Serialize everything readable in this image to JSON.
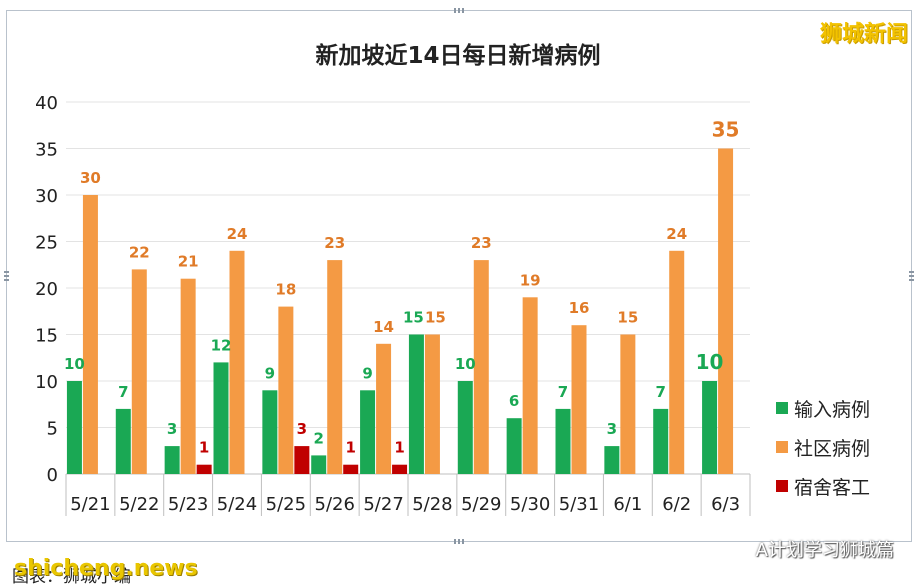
{
  "watermark_top": "狮城新闻",
  "watermark_bottom_left": "shicheng.news",
  "watermark_bottom_right": "A计划学习狮城篇",
  "bottom_caption": "图表：狮城小编",
  "chart_data": {
    "type": "bar",
    "title": "新加坡近14日每日新增病例",
    "categories": [
      "5/21",
      "5/22",
      "5/23",
      "5/24",
      "5/25",
      "5/26",
      "5/27",
      "5/28",
      "5/29",
      "5/30",
      "5/31",
      "6/1",
      "6/2",
      "6/3"
    ],
    "series": [
      {
        "name": "输入病例",
        "color": "#1aa854",
        "values": [
          10,
          7,
          3,
          12,
          9,
          2,
          9,
          15,
          10,
          6,
          7,
          3,
          7,
          10
        ]
      },
      {
        "name": "社区病例",
        "color": "#f49a44",
        "values": [
          30,
          22,
          21,
          24,
          18,
          23,
          14,
          15,
          23,
          19,
          16,
          15,
          24,
          35
        ]
      },
      {
        "name": "宿舍客工",
        "color": "#c00000",
        "values": [
          0,
          0,
          1,
          0,
          3,
          1,
          1,
          0,
          0,
          0,
          0,
          0,
          0,
          0
        ]
      }
    ],
    "ylim": [
      0,
      40
    ],
    "yticks": [
      0,
      5,
      10,
      15,
      20,
      25,
      30,
      35,
      40
    ],
    "xlabel": "",
    "ylabel": "",
    "legend_position": "right",
    "grid": true
  }
}
